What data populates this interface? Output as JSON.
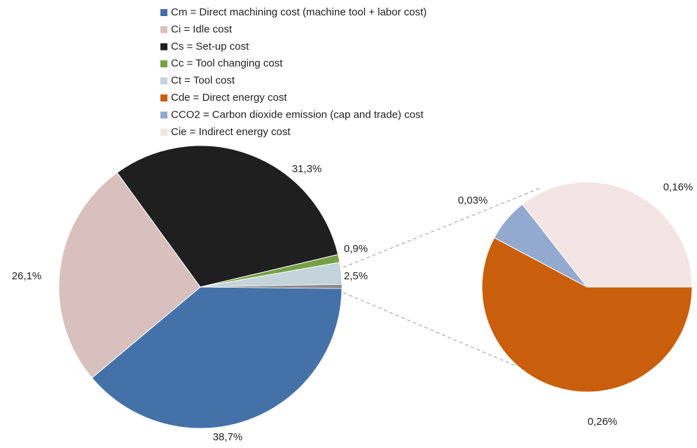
{
  "chart_data": {
    "type": "pie-of-pie",
    "slices": [
      {
        "name": "Cm = Direct machining cost (machine tool + labor cost)",
        "color": "#4472a8",
        "value": 38.7,
        "value_label": "38,7%"
      },
      {
        "name": "Ci = Idle cost",
        "color": "#d7c0be",
        "value": 26.1,
        "value_label": "26,1%"
      },
      {
        "name": "Cs = Set-up cost",
        "color": "#1f1f1f",
        "value": 31.3,
        "value_label": "31,3%"
      },
      {
        "name": "Cc = Tool changing cost",
        "color": "#77a046",
        "value": 0.9,
        "value_label": "0,9%"
      },
      {
        "name": "Ct = Tool cost",
        "color": "#c3d4da",
        "value": 2.5,
        "value_label": "2,5%"
      }
    ],
    "secondary": [
      {
        "name": "Cde = Direct energy cost",
        "color": "#c95f0c",
        "value": 0.26,
        "value_label": "0,26%"
      },
      {
        "name": "CCO2 = Carbon dioxide emission (cap and trade) cost",
        "color": "#93a9d0",
        "value": 0.03,
        "value_label": "0,03%"
      },
      {
        "name": "Cie = Indirect energy cost",
        "color": "#f4e4e4",
        "value": 0.16,
        "value_label": "0,16%"
      }
    ],
    "other_color": "#8c8c8c"
  }
}
